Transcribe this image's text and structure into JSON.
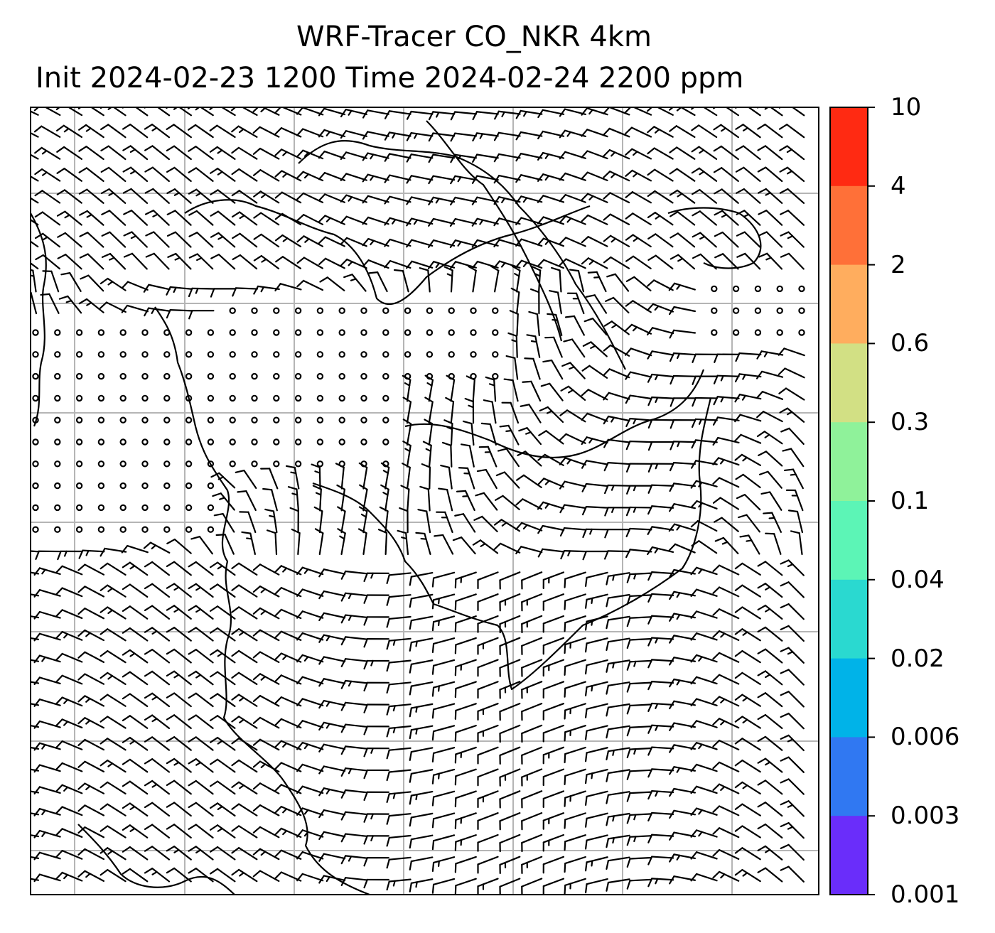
{
  "title": {
    "line1": "WRF-Tracer CO_NKR 4km",
    "line2": "Init 2024-02-23 1200 Time 2024-02-24 2200 ppm"
  },
  "colorbar": {
    "levels": [
      {
        "label": "10",
        "color": "#ff2a12"
      },
      {
        "label": "4",
        "color": "#ff7038"
      },
      {
        "label": "2",
        "color": "#ffad5e"
      },
      {
        "label": "0.6",
        "color": "#d2e084"
      },
      {
        "label": "0.3",
        "color": "#8ff29a"
      },
      {
        "label": "0.1",
        "color": "#5cf5b6"
      },
      {
        "label": "0.04",
        "color": "#2ad9d0"
      },
      {
        "label": "0.02",
        "color": "#00b3e8"
      },
      {
        "label": "0.006",
        "color": "#3078f2"
      },
      {
        "label": "0.003",
        "color": "#6a2dfa"
      },
      {
        "label": "0.001",
        "color": ""
      }
    ]
  },
  "map": {
    "type": "wind barb map",
    "gridlines": true,
    "coastlines": true,
    "wind_barbs": true,
    "calm_circles": true,
    "tracer_shading_visible": false
  }
}
